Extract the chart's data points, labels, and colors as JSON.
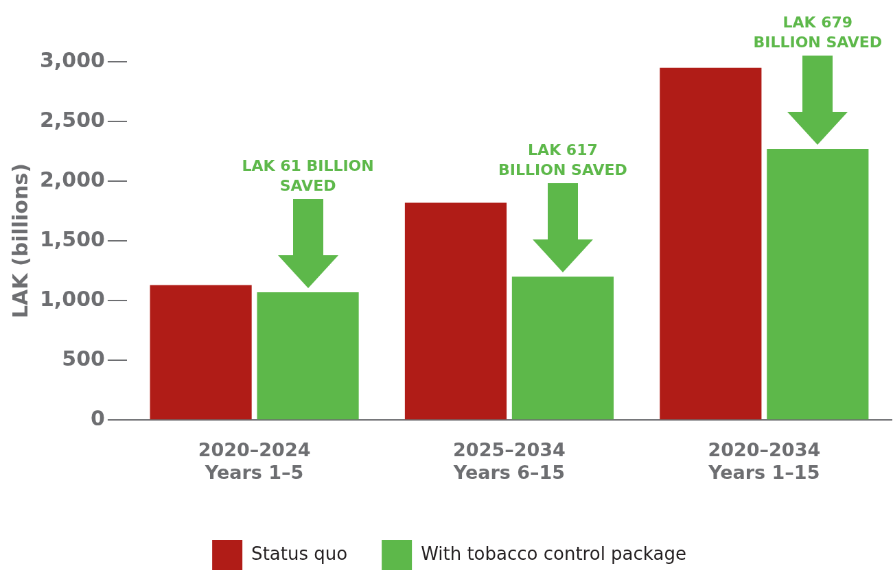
{
  "chart_data": {
    "type": "bar",
    "ylabel": "LAK (billions)",
    "categories": [
      "2020–2024\nYears 1–5",
      "2025–2034\nYears 6–15",
      "2020–2034\nYears 1–15"
    ],
    "series": [
      {
        "name": "Status quo",
        "color": "#b01c17",
        "values": [
          1130,
          1820,
          2950
        ]
      },
      {
        "name": "With tobacco control package",
        "color": "#5db84a",
        "values": [
          1070,
          1200,
          2270
        ]
      }
    ],
    "ylim": [
      0,
      3000
    ],
    "yticks": [
      {
        "value": 0,
        "label": "0"
      },
      {
        "value": 500,
        "label": "500"
      },
      {
        "value": 1000,
        "label": "1,000"
      },
      {
        "value": 1500,
        "label": "1,500"
      },
      {
        "value": 2000,
        "label": "2,000"
      },
      {
        "value": 2500,
        "label": "2,500"
      },
      {
        "value": 3000,
        "label": "3,000"
      }
    ],
    "annotations": [
      "LAK 61 BILLION SAVED",
      "LAK 617 BILLION SAVED",
      "LAK 679 BILLION SAVED"
    ],
    "grid": false,
    "legend": "bottom"
  }
}
